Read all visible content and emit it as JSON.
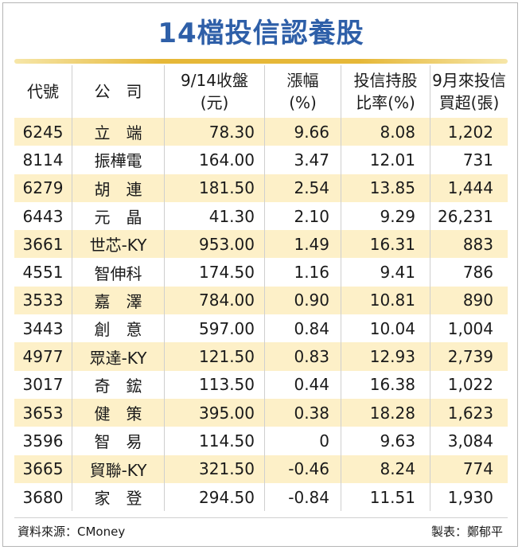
{
  "title": "14檔投信認養股",
  "headers": [
    [
      "代號"
    ],
    [
      "公　司"
    ],
    [
      "9/14收盤",
      "(元)"
    ],
    [
      "漲幅",
      "(%)"
    ],
    [
      "投信持股",
      "比率(%)"
    ],
    [
      "9月來投信",
      "買超(張)"
    ]
  ],
  "rows": [
    [
      "6245",
      "立　端",
      "78.30",
      "9.66",
      "8.08",
      "1,202"
    ],
    [
      "8114",
      "振樺電",
      "164.00",
      "3.47",
      "12.01",
      "731"
    ],
    [
      "6279",
      "胡　連",
      "181.50",
      "2.54",
      "13.85",
      "1,444"
    ],
    [
      "6443",
      "元　晶",
      "41.30",
      "2.10",
      "9.29",
      "26,231"
    ],
    [
      "3661",
      "世芯-KY",
      "953.00",
      "1.49",
      "16.31",
      "883"
    ],
    [
      "4551",
      "智伸科",
      "174.50",
      "1.16",
      "9.41",
      "786"
    ],
    [
      "3533",
      "嘉　澤",
      "784.00",
      "0.90",
      "10.81",
      "890"
    ],
    [
      "3443",
      "創　意",
      "597.00",
      "0.84",
      "10.04",
      "1,004"
    ],
    [
      "4977",
      "眾達-KY",
      "121.50",
      "0.83",
      "12.93",
      "2,739"
    ],
    [
      "3017",
      "奇　鋐",
      "113.50",
      "0.44",
      "16.38",
      "1,022"
    ],
    [
      "3653",
      "健　策",
      "395.00",
      "0.38",
      "18.28",
      "1,623"
    ],
    [
      "3596",
      "智　易",
      "114.50",
      "0",
      "9.63",
      "3,084"
    ],
    [
      "3665",
      "貿聯-KY",
      "321.50",
      "-0.46",
      "8.24",
      "774"
    ],
    [
      "3680",
      "家　登",
      "294.50",
      "-0.84",
      "11.51",
      "1,930"
    ]
  ],
  "footer": {
    "source": "資料來源：CMoney",
    "credit": "製表：鄭郁平"
  },
  "colors": {
    "title": "#2e5fa8",
    "rule": "#e6b838",
    "row_highlight": "#fdf0c8"
  }
}
